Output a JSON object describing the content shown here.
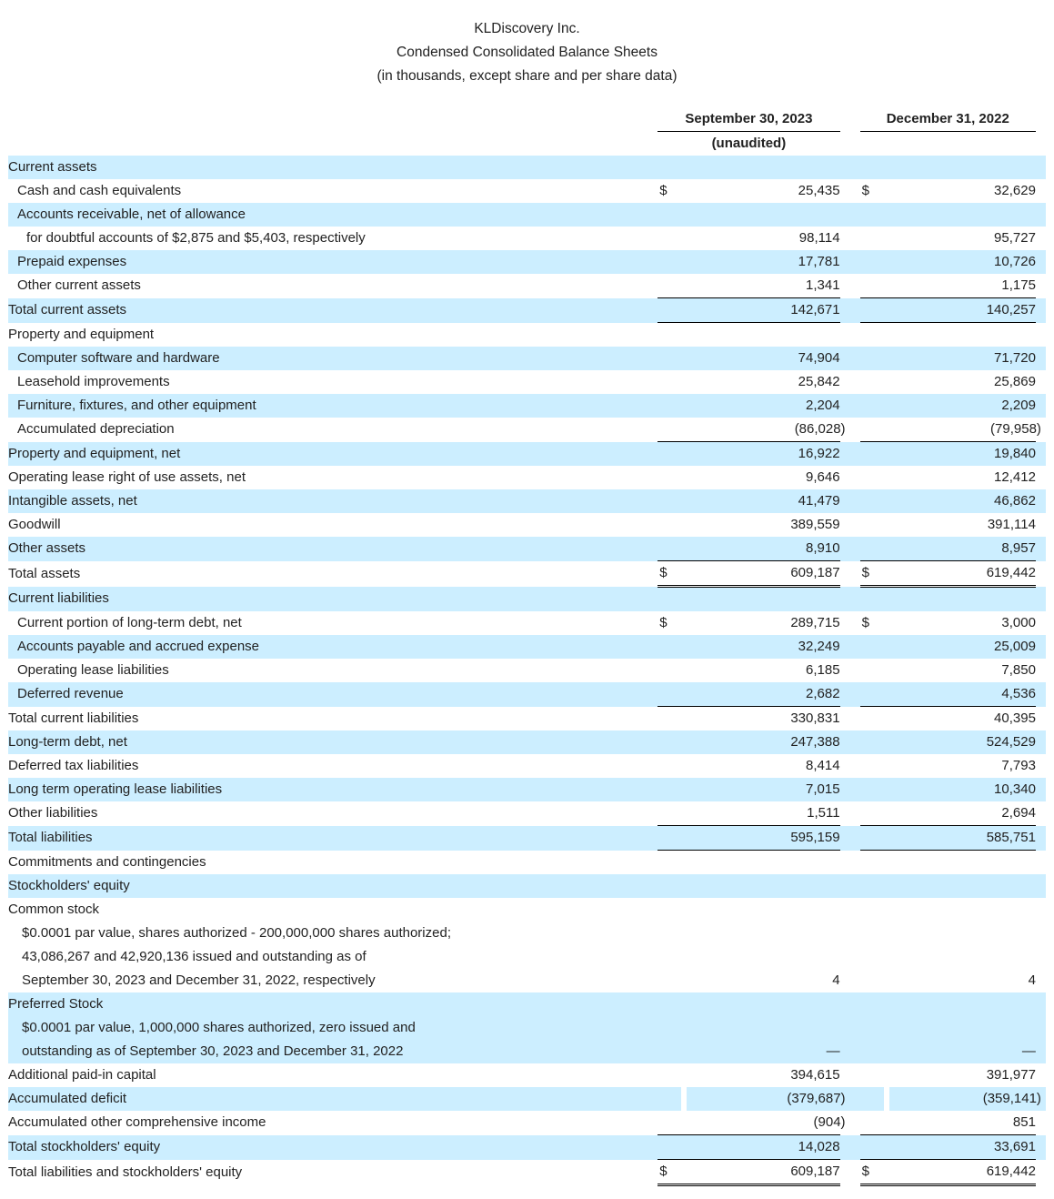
{
  "header": {
    "company": "KLDiscovery Inc.",
    "title": "Condensed Consolidated Balance Sheets",
    "subtitle": "(in thousands, except share and per share data)"
  },
  "columns": {
    "c1": "September 30, 2023",
    "c1_note": "(unaudited)",
    "c2": "December 31, 2022"
  },
  "rows": [
    {
      "label": "Current assets",
      "shade": true,
      "indent": 0
    },
    {
      "label": "Cash and cash equivalents",
      "indent": 1,
      "d": true,
      "v1": "25,435",
      "v2": "32,629"
    },
    {
      "label": "Accounts receivable, net of allowance",
      "shade": true,
      "indent": 1
    },
    {
      "label": "for doubtful accounts of $2,875 and $5,403, respectively",
      "indent": 2,
      "v1": "98,114",
      "v2": "95,727"
    },
    {
      "label": "Prepaid expenses",
      "shade": true,
      "indent": 1,
      "v1": "17,781",
      "v2": "10,726"
    },
    {
      "label": "Other current assets",
      "indent": 1,
      "v1": "1,341",
      "v2": "1,175"
    },
    {
      "label": "Total current assets",
      "shade": true,
      "indent": 0,
      "top": true,
      "bottom": true,
      "v1": "142,671",
      "v2": "140,257"
    },
    {
      "label": "Property and equipment",
      "indent": 0
    },
    {
      "label": "Computer software and hardware",
      "shade": true,
      "indent": 1,
      "v1": "74,904",
      "v2": "71,720"
    },
    {
      "label": "Leasehold improvements",
      "indent": 1,
      "v1": "25,842",
      "v2": "25,869"
    },
    {
      "label": "Furniture, fixtures, and other equipment",
      "shade": true,
      "indent": 1,
      "v1": "2,204",
      "v2": "2,209"
    },
    {
      "label": "Accumulated depreciation",
      "indent": 1,
      "v1": "(86,028)",
      "v2": "(79,958)"
    },
    {
      "label": "Property and equipment, net",
      "shade": true,
      "indent": 0,
      "top": true,
      "v1": "16,922",
      "v2": "19,840"
    },
    {
      "label": "Operating lease right of use assets, net",
      "indent": 0,
      "v1": "9,646",
      "v2": "12,412"
    },
    {
      "label": "Intangible assets, net",
      "shade": true,
      "indent": 0,
      "v1": "41,479",
      "v2": "46,862"
    },
    {
      "label": "Goodwill",
      "indent": 0,
      "v1": "389,559",
      "v2": "391,114"
    },
    {
      "label": "Other assets",
      "shade": true,
      "indent": 0,
      "v1": "8,910",
      "v2": "8,957"
    },
    {
      "label": "Total assets",
      "indent": 0,
      "d": true,
      "top": true,
      "dbl": true,
      "v1": "609,187",
      "v2": "619,442"
    },
    {
      "label": "Current liabilities",
      "shade": true,
      "indent": 0
    },
    {
      "label": "Current portion of long-term debt, net",
      "indent": 1,
      "d": true,
      "v1": "289,715",
      "v2": "3,000"
    },
    {
      "label": "Accounts payable and accrued expense",
      "shade": true,
      "indent": 1,
      "v1": "32,249",
      "v2": "25,009"
    },
    {
      "label": "Operating lease liabilities",
      "indent": 1,
      "v1": "6,185",
      "v2": "7,850"
    },
    {
      "label": "Deferred revenue",
      "shade": true,
      "indent": 1,
      "v1": "2,682",
      "v2": "4,536"
    },
    {
      "label": "Total current liabilities",
      "indent": 0,
      "top": true,
      "v1": "330,831",
      "v2": "40,395"
    },
    {
      "label": "Long-term debt, net",
      "shade": true,
      "indent": 0,
      "v1": "247,388",
      "v2": "524,529"
    },
    {
      "label": "Deferred tax liabilities",
      "indent": 0,
      "v1": "8,414",
      "v2": "7,793"
    },
    {
      "label": "Long term operating lease liabilities",
      "shade": true,
      "indent": 0,
      "v1": "7,015",
      "v2": "10,340"
    },
    {
      "label": "Other liabilities",
      "indent": 0,
      "v1": "1,511",
      "v2": "2,694"
    },
    {
      "label": "Total liabilities",
      "shade": true,
      "indent": 0,
      "top": true,
      "bottom": true,
      "v1": "595,159",
      "v2": "585,751"
    },
    {
      "label": "Commitments and contingencies",
      "indent": 0
    },
    {
      "label": "Stockholders' equity",
      "shade": true,
      "indent": 0
    },
    {
      "label": "Common stock",
      "indent": 0
    },
    {
      "label": "$0.0001 par value, shares authorized - 200,000,000 shares authorized;",
      "indent": 3
    },
    {
      "label": "43,086,267 and 42,920,136 issued and outstanding as of",
      "indent": 3
    },
    {
      "label": "September 30, 2023 and December 31, 2022, respectively",
      "indent": 3,
      "v1": "4",
      "v2": "4"
    },
    {
      "label": "Preferred Stock",
      "shade": true,
      "indent": 0
    },
    {
      "label": "$0.0001 par value, 1,000,000 shares authorized, zero issued and",
      "shade": true,
      "indent": 3
    },
    {
      "label": "outstanding as of September 30, 2023 and December 31, 2022",
      "shade": true,
      "indent": 3,
      "v1": "—",
      "v2": "—"
    },
    {
      "label": "Additional paid-in capital",
      "indent": 0,
      "v1": "394,615",
      "v2": "391,977"
    },
    {
      "label": "Accumulated deficit",
      "shade": true,
      "indent": 0,
      "v1": "(379,687)",
      "v2": "(359,141)"
    },
    {
      "label": "Accumulated other comprehensive income",
      "indent": 0,
      "v1": "(904)",
      "v2": "851"
    },
    {
      "label": "Total stockholders' equity",
      "shade": true,
      "indent": 0,
      "top": true,
      "v1": "14,028",
      "v2": "33,691"
    },
    {
      "label": "Total liabilities and stockholders' equity",
      "indent": 0,
      "d": true,
      "top": true,
      "dbl": true,
      "v1": "609,187",
      "v2": "619,442"
    }
  ],
  "currency_symbol": "$"
}
